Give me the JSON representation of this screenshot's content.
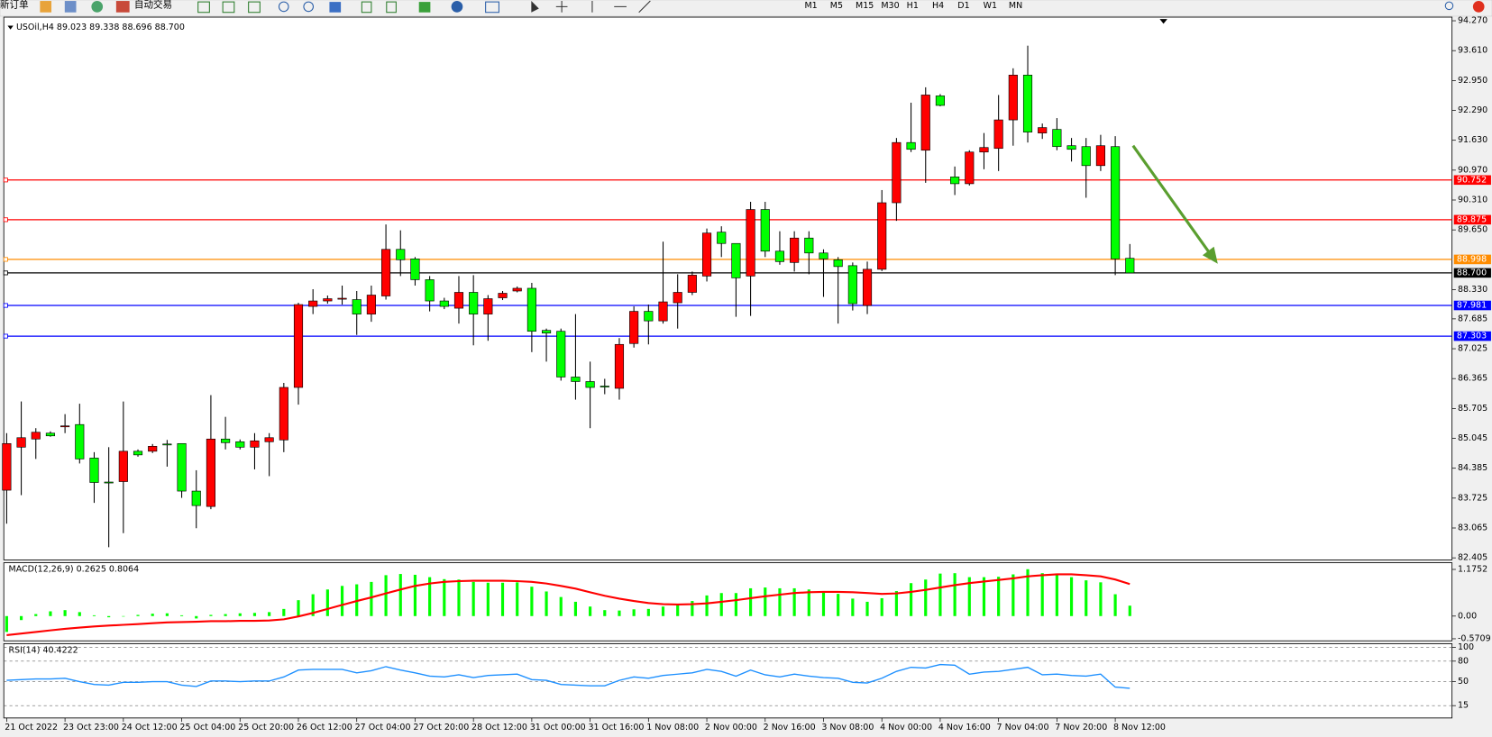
{
  "toolbar": {
    "items": [
      "新订单",
      "自动交易"
    ],
    "timeframes": [
      "M1",
      "M5",
      "M15",
      "M30",
      "H1",
      "H4",
      "D1",
      "W1",
      "MN"
    ]
  },
  "chart_data": [
    {
      "type": "candlestick",
      "title": "USOil,H4  89.023 89.338 88.696 88.700",
      "categories": [
        "21 Oct 2022",
        null,
        null,
        null,
        "23 Oct 23:00",
        null,
        null,
        null,
        "24 Oct 12:00",
        null,
        null,
        null,
        "25 Oct 04:00",
        null,
        null,
        null,
        "25 Oct 20:00",
        null,
        null,
        null,
        "26 Oct 12:00",
        null,
        null,
        null,
        "27 Oct 04:00",
        null,
        null,
        null,
        "27 Oct 20:00",
        null,
        null,
        null,
        "28 Oct 12:00",
        null,
        null,
        null,
        "31 Oct 00:00",
        null,
        null,
        null,
        "31 Oct 16:00",
        null,
        null,
        null,
        "1 Nov 08:00",
        null,
        null,
        null,
        "2 Nov 00:00",
        null,
        null,
        null,
        "2 Nov 16:00",
        null,
        null,
        null,
        "3 Nov 08:00",
        null,
        null,
        null,
        "4 Nov 00:00",
        null,
        null,
        null,
        "4 Nov 16:00",
        null,
        null,
        null,
        "7 Nov 04:00",
        null,
        null,
        null,
        "7 Nov 20:00",
        null,
        null,
        null,
        "8 Nov 12:00",
        null
      ],
      "open": [
        83.9,
        84.85,
        85.03,
        85.16,
        85.3,
        85.35,
        84.61,
        84.08,
        84.09,
        84.76,
        84.76,
        84.92,
        84.93,
        83.88,
        83.54,
        85.03,
        84.97,
        84.85,
        84.97,
        85.01,
        86.17,
        87.96,
        88.08,
        88.12,
        88.11,
        87.79,
        88.19,
        89.22,
        89.01,
        88.55,
        88.08,
        87.92,
        88.27,
        87.79,
        88.15,
        88.3,
        88.36,
        87.43,
        87.41,
        86.4,
        86.3,
        86.2,
        86.15,
        87.14,
        87.85,
        87.64,
        88.04,
        88.27,
        88.63,
        89.6,
        89.35,
        88.63,
        90.1,
        89.18,
        88.93,
        89.47,
        89.14,
        88.99,
        88.86,
        87.98,
        88.78,
        90.25,
        91.58,
        91.41,
        92.61,
        90.82,
        90.67,
        91.37,
        91.45,
        92.08,
        93.07,
        91.79,
        91.87,
        91.51,
        91.49,
        91.07,
        91.49,
        89.023
      ],
      "high": [
        85.16,
        85.86,
        85.27,
        85.2,
        85.58,
        85.81,
        84.74,
        84.85,
        85.86,
        84.8,
        84.92,
        85.01,
        84.93,
        84.34,
        86.0,
        85.52,
        85.02,
        85.16,
        85.16,
        86.27,
        88.04,
        88.34,
        88.2,
        88.42,
        88.3,
        88.42,
        89.77,
        89.64,
        89.05,
        88.63,
        88.15,
        88.63,
        88.65,
        88.21,
        88.3,
        88.4,
        88.48,
        87.47,
        87.47,
        87.79,
        86.74,
        86.36,
        87.26,
        87.96,
        88.0,
        89.39,
        88.67,
        88.73,
        89.68,
        89.73,
        89.35,
        90.27,
        90.27,
        89.62,
        89.62,
        89.62,
        89.22,
        89.05,
        88.93,
        88.95,
        90.53,
        91.68,
        92.46,
        92.8,
        92.65,
        91.05,
        91.41,
        91.79,
        92.63,
        93.22,
        93.72,
        92.0,
        92.12,
        91.68,
        91.68,
        91.75,
        91.72,
        89.338
      ],
      "low": [
        83.16,
        83.79,
        84.59,
        85.08,
        85.16,
        84.49,
        83.62,
        82.64,
        82.95,
        84.64,
        84.72,
        84.42,
        83.73,
        83.06,
        83.48,
        84.8,
        84.8,
        84.36,
        84.21,
        84.74,
        85.79,
        87.79,
        88.02,
        88.0,
        87.33,
        87.62,
        88.11,
        88.63,
        88.42,
        87.85,
        87.9,
        87.58,
        87.1,
        87.2,
        88.1,
        88.27,
        86.95,
        86.74,
        86.32,
        85.9,
        85.27,
        86.02,
        85.9,
        87.05,
        87.12,
        87.58,
        87.47,
        88.21,
        88.51,
        89.05,
        87.73,
        87.75,
        89.05,
        88.88,
        88.73,
        88.67,
        88.17,
        87.58,
        87.87,
        87.79,
        88.74,
        89.85,
        91.37,
        90.69,
        92.38,
        90.42,
        90.63,
        90.99,
        90.95,
        91.51,
        91.58,
        91.66,
        91.41,
        91.16,
        90.36,
        90.95,
        88.65,
        88.696
      ],
      "close": [
        84.93,
        85.06,
        85.18,
        85.1,
        85.32,
        84.59,
        84.07,
        84.06,
        84.76,
        84.68,
        84.87,
        84.9,
        83.88,
        83.56,
        85.03,
        84.95,
        84.85,
        84.99,
        85.06,
        86.17,
        88.0,
        88.08,
        88.13,
        88.14,
        87.79,
        88.21,
        89.22,
        88.99,
        88.55,
        88.08,
        87.96,
        88.27,
        87.79,
        88.13,
        88.25,
        88.36,
        87.41,
        87.37,
        86.4,
        86.3,
        86.17,
        86.18,
        87.12,
        87.85,
        87.64,
        88.06,
        88.27,
        88.65,
        89.58,
        89.35,
        88.59,
        90.1,
        89.18,
        88.95,
        89.47,
        89.14,
        89.01,
        88.84,
        88.02,
        88.78,
        90.25,
        91.58,
        91.43,
        92.63,
        92.4,
        90.67,
        91.37,
        91.47,
        92.08,
        93.07,
        91.81,
        91.91,
        91.49,
        91.43,
        91.07,
        91.51,
        89.01,
        88.7
      ],
      "up_color": "#ff0000",
      "down_color": "#00ff00",
      "ylim": [
        82.36,
        94.35
      ],
      "yticks": [
        {
          "value": 94.27,
          "label": "94.270"
        },
        {
          "value": 93.61,
          "label": "93.610"
        },
        {
          "value": 92.95,
          "label": "92.950"
        },
        {
          "value": 92.29,
          "label": "92.290"
        },
        {
          "value": 91.63,
          "label": "91.630"
        },
        {
          "value": 90.97,
          "label": "90.970"
        },
        {
          "value": 90.31,
          "label": "90.310"
        },
        {
          "value": 89.65,
          "label": "89.650"
        },
        {
          "value": 88.33,
          "label": "88.330"
        },
        87.685,
        87.025,
        86.365,
        85.705,
        85.045,
        84.385,
        83.725,
        83.065,
        82.405
      ],
      "levels": [
        {
          "value": 90.752,
          "color": "#ff0000"
        },
        {
          "value": 89.875,
          "color": "#ff0000"
        },
        {
          "value": 88.998,
          "color": "#ff8c00"
        },
        {
          "value": 88.7,
          "color": "#000000",
          "label": "88.700"
        },
        {
          "value": 87.981,
          "color": "#0000ff"
        },
        {
          "value": 87.303,
          "color": "#0000ff"
        }
      ]
    },
    {
      "type": "macd",
      "title": "MACD(12,26,9) 0.2625 0.8064",
      "histogram": {
        "color": "#00ff00",
        "values": [
          -0.4,
          -0.1,
          0.05,
          0.12,
          0.15,
          0.1,
          0.02,
          -0.03,
          0.0,
          0.03,
          0.06,
          0.07,
          0.02,
          -0.06,
          0.03,
          0.05,
          0.07,
          0.08,
          0.1,
          0.18,
          0.4,
          0.55,
          0.67,
          0.76,
          0.8,
          0.86,
          1.03,
          1.06,
          1.04,
          0.98,
          0.93,
          0.92,
          0.86,
          0.84,
          0.84,
          0.85,
          0.74,
          0.62,
          0.48,
          0.36,
          0.24,
          0.15,
          0.14,
          0.17,
          0.18,
          0.24,
          0.3,
          0.38,
          0.52,
          0.58,
          0.58,
          0.7,
          0.72,
          0.7,
          0.7,
          0.67,
          0.62,
          0.56,
          0.44,
          0.36,
          0.45,
          0.63,
          0.83,
          0.92,
          1.07,
          1.08,
          0.98,
          0.98,
          0.99,
          1.05,
          1.18,
          1.08,
          1.03,
          0.98,
          0.9,
          0.85,
          0.55,
          0.2625
        ]
      },
      "signal": {
        "color": "#ff0000",
        "values": [
          -0.48,
          -0.44,
          -0.4,
          -0.36,
          -0.32,
          -0.29,
          -0.26,
          -0.24,
          -0.22,
          -0.2,
          -0.18,
          -0.16,
          -0.15,
          -0.14,
          -0.13,
          -0.13,
          -0.12,
          -0.12,
          -0.11,
          -0.08,
          -0.01,
          0.08,
          0.18,
          0.28,
          0.38,
          0.47,
          0.57,
          0.67,
          0.76,
          0.82,
          0.86,
          0.88,
          0.89,
          0.89,
          0.89,
          0.88,
          0.86,
          0.82,
          0.76,
          0.69,
          0.6,
          0.51,
          0.44,
          0.38,
          0.33,
          0.3,
          0.29,
          0.3,
          0.32,
          0.36,
          0.4,
          0.45,
          0.5,
          0.54,
          0.58,
          0.6,
          0.61,
          0.61,
          0.6,
          0.58,
          0.56,
          0.57,
          0.61,
          0.66,
          0.72,
          0.78,
          0.83,
          0.87,
          0.91,
          0.95,
          1.0,
          1.03,
          1.05,
          1.05,
          1.03,
          1.0,
          0.92,
          0.8064
        ]
      },
      "ylim": [
        -0.623,
        1.343
      ],
      "yticks": [
        1.1752,
        {
          "value": 0,
          "label": "0.00"
        },
        -0.5709
      ]
    },
    {
      "type": "line",
      "title": "RSI(14) 40.4222",
      "color": "#1e90ff",
      "values": [
        52,
        53,
        54,
        54,
        55,
        50,
        46,
        45,
        49,
        49,
        50,
        50,
        45,
        43,
        51,
        51,
        50,
        51,
        51,
        57,
        67,
        68,
        68,
        68,
        63,
        66,
        72,
        67,
        63,
        58,
        57,
        60,
        56,
        59,
        60,
        61,
        53,
        52,
        46,
        45,
        44,
        44,
        52,
        57,
        55,
        59,
        61,
        63,
        68,
        65,
        58,
        67,
        60,
        57,
        61,
        58,
        56,
        55,
        49,
        48,
        55,
        65,
        71,
        70,
        75,
        74,
        61,
        64,
        65,
        68,
        71,
        60,
        61,
        59,
        58,
        61,
        42,
        40.4222
      ],
      "ylim": [
        -3,
        105.5
      ],
      "yticks": [
        100,
        80,
        50,
        15
      ]
    }
  ]
}
